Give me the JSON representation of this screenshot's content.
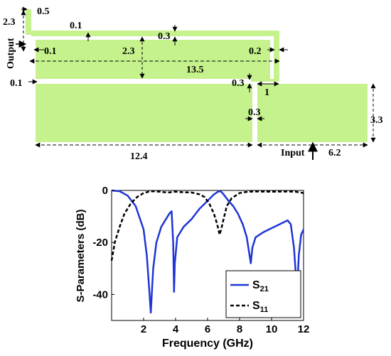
{
  "layout_diagram": {
    "fill_color": "#c6f28d",
    "dimensions": {
      "d_2_3_left": "2.3",
      "d_0_5": "0.5",
      "d_0_1_top": "0.1",
      "d_0_3_top": "0.3",
      "d_0_1_left": "0.1",
      "d_2_3_mid": "2.3",
      "d_0_2": "0.2",
      "d_13_5": "13.5",
      "d_0_1_mid": "0.1",
      "d_0_3_mid": "0.3",
      "d_1": "1",
      "d_0_3_low": "0.3",
      "d_3_3": "3.3",
      "d_12_4": "12.4",
      "d_6_2": "6.2"
    },
    "labels": {
      "output": "Output",
      "input": "Input"
    }
  },
  "chart_data": {
    "type": "line",
    "title": "",
    "xlabel": "Frequency (GHz)",
    "ylabel": "S-Parameters (dB)",
    "xlim": [
      0,
      12
    ],
    "ylim": [
      -50,
      0
    ],
    "xticks": [
      "2",
      "4",
      "6",
      "8",
      "10",
      "12"
    ],
    "yticks": [
      "0",
      "-20",
      "-40"
    ],
    "grid": false,
    "legend_position": "bottom-right",
    "series": [
      {
        "name": "S21",
        "label_main": "S",
        "label_sub": "21",
        "color": "#1f35d6",
        "style": "solid",
        "x": [
          0,
          0.5,
          1,
          1.5,
          2,
          2.2,
          2.35,
          2.45,
          2.6,
          2.8,
          3.1,
          3.4,
          3.6,
          3.75,
          3.85,
          3.9,
          3.95,
          4.1,
          4.5,
          5,
          5.5,
          6,
          6.4,
          6.7,
          6.85,
          7,
          7.3,
          7.6,
          7.9,
          8.2,
          8.45,
          8.6,
          8.7,
          8.8,
          9,
          9.5,
          10,
          10.5,
          11,
          11.2,
          11.4,
          11.55,
          11.6,
          11.7,
          11.85,
          12
        ],
        "y": [
          0,
          -0.3,
          -2,
          -6,
          -15,
          -25,
          -38,
          -47,
          -30,
          -20,
          -14,
          -11,
          -9,
          -8,
          -20,
          -39,
          -28,
          -18,
          -14,
          -11,
          -7,
          -4,
          -1.5,
          -0.3,
          -0.5,
          -1.5,
          -4,
          -6,
          -9,
          -13,
          -18,
          -24,
          -28,
          -22,
          -18,
          -16,
          -14.5,
          -13,
          -11.5,
          -13,
          -22,
          -35,
          -39,
          -25,
          -17,
          -15
        ]
      },
      {
        "name": "S11",
        "label_main": "S",
        "label_sub": "11",
        "color": "#000000",
        "style": "dashed",
        "x": [
          0,
          0.2,
          0.5,
          0.8,
          1.2,
          1.6,
          2,
          2.3,
          2.6,
          3,
          3.5,
          4,
          4.5,
          5,
          5.5,
          5.8,
          6.1,
          6.4,
          6.6,
          6.75,
          6.85,
          7,
          7.2,
          7.5,
          8,
          8.5,
          9,
          10,
          11,
          11.5,
          12
        ],
        "y": [
          -27,
          -20,
          -14,
          -9,
          -5,
          -2.5,
          -1,
          -0.5,
          -0.3,
          -0.5,
          -0.8,
          -0.5,
          -0.7,
          -0.8,
          -1.5,
          -2.5,
          -5,
          -9,
          -13,
          -17,
          -15,
          -11,
          -6,
          -3,
          -1,
          -0.5,
          -0.4,
          -0.5,
          -0.4,
          -0.5,
          -1
        ]
      }
    ]
  }
}
